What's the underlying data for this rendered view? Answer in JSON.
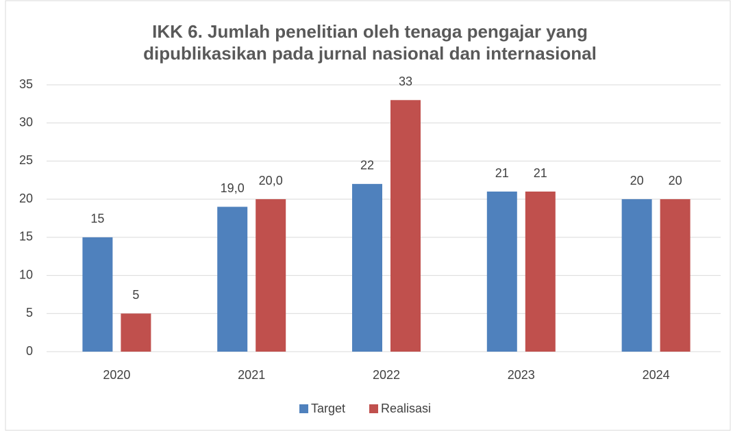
{
  "chart_data": {
    "type": "bar",
    "title": [
      "IKK 6. Jumlah penelitian oleh tenaga pengajar yang",
      "dipublikasikan pada jurnal nasional dan internasional"
    ],
    "categories": [
      "2020",
      "2021",
      "2022",
      "2023",
      "2024"
    ],
    "series": [
      {
        "name": "Target",
        "color": "#4f81bd",
        "values": [
          15,
          19,
          22,
          21,
          20
        ],
        "value_labels": [
          "15",
          "19,0",
          "22",
          "21",
          "20"
        ]
      },
      {
        "name": "Realisasi",
        "color": "#c0504d",
        "values": [
          5,
          20,
          33,
          21,
          20
        ],
        "value_labels": [
          "5",
          "20,0",
          "33",
          "21",
          "20"
        ]
      }
    ],
    "ylim": [
      0,
      35
    ],
    "yticks": [
      0,
      5,
      10,
      15,
      20,
      25,
      30,
      35
    ],
    "grid": true,
    "legend": "bottom"
  }
}
